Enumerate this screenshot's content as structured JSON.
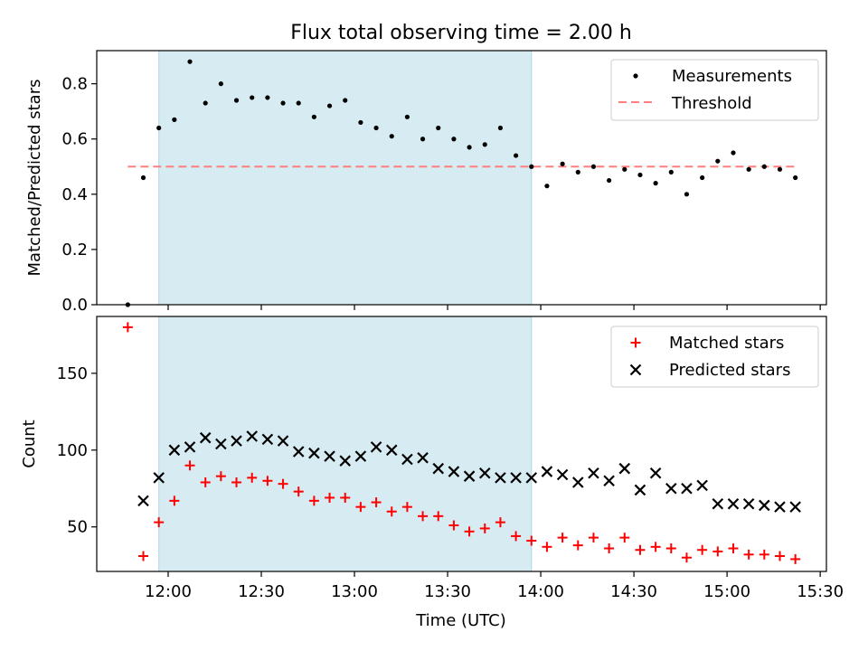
{
  "title": "Flux total observing time = 2.00 h",
  "colors": {
    "shade": "#add8e6",
    "measurement": "#000000",
    "threshold": "#ff7f7f",
    "matched": "#ff0000",
    "predicted": "#000000"
  },
  "chart_data": [
    {
      "type": "scatter",
      "panel": "top",
      "title": "Flux total observing time = 2.00 h",
      "xlabel": "",
      "ylabel": "Matched/Predicted stars",
      "xlim": [
        "11:37",
        "15:32"
      ],
      "ylim": [
        0,
        0.92
      ],
      "y_ticks": [
        0.0,
        0.2,
        0.4,
        0.6,
        0.8
      ],
      "y_tick_labels": [
        "0.0",
        "0.2",
        "0.4",
        "0.6",
        "0.8"
      ],
      "shaded_region": [
        "11:57",
        "13:57"
      ],
      "legend_position": "upper right",
      "grid": false,
      "series": [
        {
          "name": "Measurements",
          "marker": "dot",
          "x": [
            "11:47",
            "11:52",
            "11:57",
            "12:02",
            "12:07",
            "12:12",
            "12:17",
            "12:22",
            "12:27",
            "12:32",
            "12:37",
            "12:42",
            "12:47",
            "12:52",
            "12:57",
            "13:02",
            "13:07",
            "13:12",
            "13:17",
            "13:22",
            "13:27",
            "13:32",
            "13:37",
            "13:42",
            "13:47",
            "13:52",
            "13:57",
            "14:02",
            "14:07",
            "14:12",
            "14:17",
            "14:22",
            "14:27",
            "14:32",
            "14:37",
            "14:42",
            "14:47",
            "14:52",
            "14:57",
            "15:02",
            "15:07",
            "15:12",
            "15:17",
            "15:22"
          ],
          "y": [
            0.0,
            0.46,
            0.64,
            0.67,
            0.88,
            0.73,
            0.8,
            0.74,
            0.75,
            0.75,
            0.73,
            0.73,
            0.68,
            0.72,
            0.74,
            0.66,
            0.64,
            0.61,
            0.68,
            0.6,
            0.64,
            0.6,
            0.57,
            0.58,
            0.64,
            0.54,
            0.5,
            0.43,
            0.51,
            0.48,
            0.5,
            0.45,
            0.49,
            0.47,
            0.44,
            0.48,
            0.4,
            0.46,
            0.52,
            0.55,
            0.49,
            0.5,
            0.49,
            0.46
          ]
        },
        {
          "name": "Threshold",
          "line": "dashed",
          "x": [
            "11:47",
            "15:22"
          ],
          "y": [
            0.5,
            0.5
          ]
        }
      ]
    },
    {
      "type": "scatter",
      "panel": "bottom",
      "xlabel": "Time (UTC)",
      "ylabel": "Count",
      "xlim": [
        "11:37",
        "15:32"
      ],
      "ylim": [
        21,
        187
      ],
      "y_ticks": [
        50,
        100,
        150
      ],
      "y_tick_labels": [
        "50",
        "100",
        "150"
      ],
      "x_ticks": [
        "12:00",
        "12:30",
        "13:00",
        "13:30",
        "14:00",
        "14:30",
        "15:00",
        "15:30"
      ],
      "x_tick_labels": [
        "12:00",
        "12:30",
        "13:00",
        "13:30",
        "14:00",
        "14:30",
        "15:00",
        "15:30"
      ],
      "shaded_region": [
        "11:57",
        "13:57"
      ],
      "legend_position": "upper right",
      "grid": false,
      "series": [
        {
          "name": "Matched stars",
          "marker": "plus",
          "x": [
            "11:47",
            "11:52",
            "11:57",
            "12:02",
            "12:07",
            "12:12",
            "12:17",
            "12:22",
            "12:27",
            "12:32",
            "12:37",
            "12:42",
            "12:47",
            "12:52",
            "12:57",
            "13:02",
            "13:07",
            "13:12",
            "13:17",
            "13:22",
            "13:27",
            "13:32",
            "13:37",
            "13:42",
            "13:47",
            "13:52",
            "13:57",
            "14:02",
            "14:07",
            "14:12",
            "14:17",
            "14:22",
            "14:27",
            "14:32",
            "14:37",
            "14:42",
            "14:47",
            "14:52",
            "14:57",
            "15:02",
            "15:07",
            "15:12",
            "15:17",
            "15:22"
          ],
          "y": [
            180,
            31,
            53,
            67,
            90,
            79,
            83,
            79,
            82,
            80,
            78,
            73,
            67,
            69,
            69,
            63,
            66,
            60,
            63,
            57,
            57,
            51,
            47,
            49,
            53,
            44,
            41,
            37,
            43,
            38,
            43,
            36,
            43,
            35,
            37,
            36,
            30,
            35,
            34,
            36,
            32,
            32,
            31,
            29
          ]
        },
        {
          "name": "Predicted stars",
          "marker": "x",
          "x": [
            "11:52",
            "11:57",
            "12:02",
            "12:07",
            "12:12",
            "12:17",
            "12:22",
            "12:27",
            "12:32",
            "12:37",
            "12:42",
            "12:47",
            "12:52",
            "12:57",
            "13:02",
            "13:07",
            "13:12",
            "13:17",
            "13:22",
            "13:27",
            "13:32",
            "13:37",
            "13:42",
            "13:47",
            "13:52",
            "13:57",
            "14:02",
            "14:07",
            "14:12",
            "14:17",
            "14:22",
            "14:27",
            "14:32",
            "14:37",
            "14:42",
            "14:47",
            "14:52",
            "14:57",
            "15:02",
            "15:07",
            "15:12",
            "15:17",
            "15:22"
          ],
          "y": [
            67,
            82,
            100,
            102,
            108,
            104,
            106,
            109,
            107,
            106,
            99,
            98,
            96,
            93,
            96,
            102,
            100,
            94,
            95,
            88,
            86,
            83,
            85,
            82,
            82,
            82,
            86,
            84,
            79,
            85,
            80,
            88,
            74,
            85,
            75,
            75,
            77,
            65,
            65,
            65,
            64,
            63,
            63
          ]
        }
      ]
    }
  ]
}
